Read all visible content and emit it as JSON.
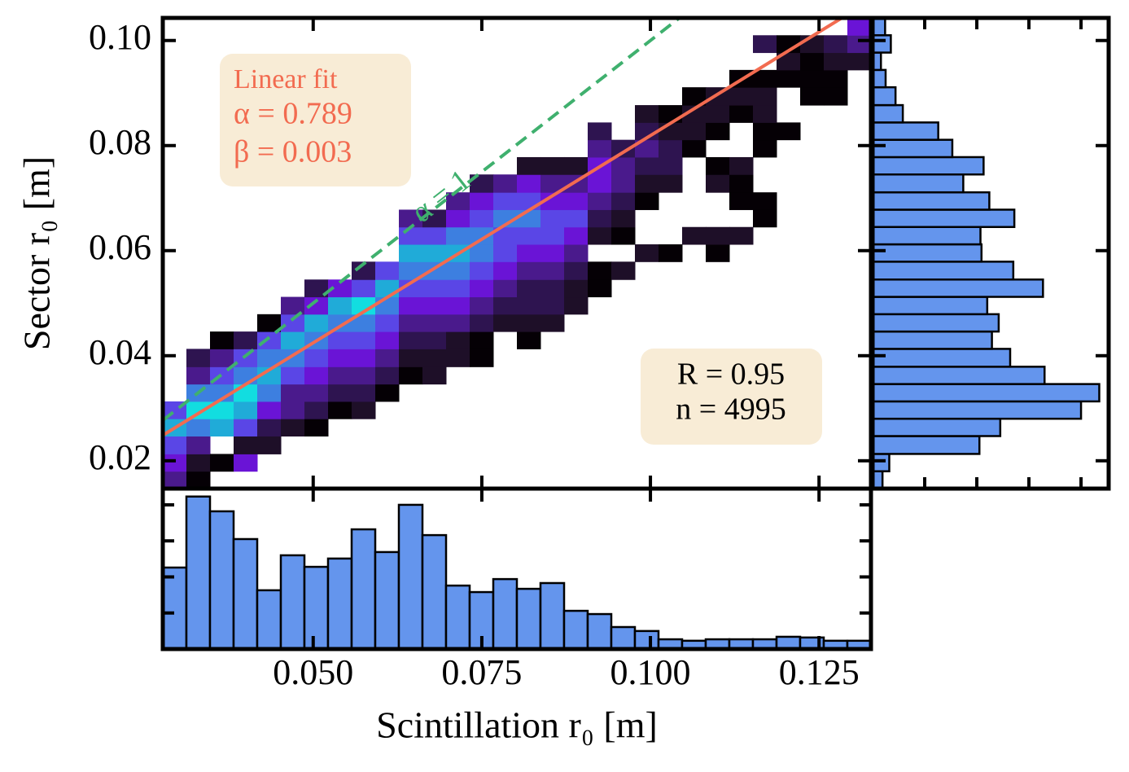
{
  "chart_data": [
    {
      "type": "hist2d",
      "xlabel": "Scintillation r₀ [m]",
      "ylabel": "Sector r₀ [m]",
      "xlim": [
        0.0277,
        0.1327
      ],
      "ylim": [
        0.0147,
        0.1043
      ],
      "xticks": [
        {
          "value": 0.05,
          "label": "0.050"
        },
        0.075,
        {
          "value": 0.1,
          "label": "0.100"
        },
        0.125
      ],
      "yticks": [
        0.02,
        0.04,
        0.06,
        0.08,
        {
          "value": 0.1,
          "label": "0.10"
        }
      ],
      "xbins": [
        0.0277,
        0.0312,
        0.0347,
        0.0382,
        0.0417,
        0.0452,
        0.0487,
        0.0522,
        0.0557,
        0.0592,
        0.0627,
        0.0662,
        0.0697,
        0.0732,
        0.0767,
        0.0802,
        0.0837,
        0.0872,
        0.0907,
        0.0942,
        0.0977,
        0.1012,
        0.1047,
        0.1082,
        0.1117,
        0.1152,
        0.1187,
        0.1222,
        0.1257,
        0.1292,
        0.1327
      ],
      "ybins": [
        0.0147,
        0.018,
        0.0213,
        0.0247,
        0.028,
        0.0313,
        0.0346,
        0.0379,
        0.0413,
        0.0446,
        0.0479,
        0.0512,
        0.0545,
        0.0579,
        0.0612,
        0.0645,
        0.0678,
        0.0711,
        0.0745,
        0.0778,
        0.0811,
        0.0844,
        0.0877,
        0.0911,
        0.0944,
        0.0977,
        0.101,
        0.1043
      ],
      "colormap": [
        "#050005",
        "#1e0f28",
        "#2e1450",
        "#4a1a8c",
        "#6a14d6",
        "#5a46e6",
        "#3d7fe0",
        "#20abd8",
        "#12dde0"
      ],
      "counts": [
        [
          4,
          5,
          6,
          8,
          6,
          0,
          0,
          0,
          0,
          0,
          0,
          0,
          0,
          0,
          0,
          0,
          0,
          0,
          0,
          0,
          0,
          0,
          0,
          0,
          0,
          0,
          0
        ],
        [
          1,
          2,
          4,
          7,
          9,
          7,
          4,
          3,
          0,
          0,
          0,
          0,
          0,
          0,
          0,
          0,
          0,
          0,
          0,
          0,
          0,
          0,
          0,
          0,
          0,
          0,
          0
        ],
        [
          0,
          1,
          0,
          8,
          9,
          7,
          6,
          4,
          1,
          0,
          0,
          0,
          0,
          0,
          0,
          0,
          0,
          0,
          0,
          0,
          0,
          0,
          0,
          0,
          0,
          0,
          0
        ],
        [
          0,
          5,
          2,
          6,
          8,
          9,
          7,
          6,
          3,
          0,
          0,
          0,
          0,
          0,
          0,
          0,
          0,
          0,
          0,
          0,
          0,
          0,
          0,
          0,
          0,
          0,
          0
        ],
        [
          0,
          0,
          2,
          3,
          5,
          7,
          8,
          7,
          6,
          1,
          0,
          0,
          0,
          0,
          0,
          0,
          0,
          0,
          0,
          0,
          0,
          0,
          0,
          0,
          0,
          0,
          0
        ],
        [
          0,
          0,
          0,
          2,
          4,
          4,
          6,
          7,
          8,
          6,
          4,
          0,
          0,
          0,
          0,
          0,
          0,
          0,
          0,
          0,
          0,
          0,
          0,
          0,
          0,
          0,
          0
        ],
        [
          0,
          0,
          0,
          1,
          3,
          4,
          5,
          6,
          7,
          8,
          5,
          3,
          0,
          0,
          0,
          0,
          0,
          0,
          0,
          0,
          0,
          0,
          0,
          0,
          0,
          0,
          0
        ],
        [
          0,
          0,
          0,
          0,
          1,
          3,
          4,
          5,
          6,
          7,
          8,
          5,
          0,
          0,
          0,
          0,
          0,
          0,
          0,
          0,
          0,
          0,
          0,
          0,
          0,
          0,
          0
        ],
        [
          0,
          0,
          0,
          0,
          2,
          3,
          4,
          5,
          6,
          7,
          9,
          6,
          3,
          0,
          0,
          0,
          0,
          0,
          0,
          0,
          0,
          0,
          0,
          0,
          0,
          0,
          0
        ],
        [
          0,
          0,
          0,
          0,
          0,
          1,
          3,
          4,
          5,
          6,
          7,
          8,
          6,
          0,
          0,
          0,
          0,
          0,
          0,
          0,
          0,
          0,
          0,
          0,
          0,
          0,
          0
        ],
        [
          0,
          0,
          0,
          0,
          0,
          0,
          1,
          2,
          3,
          4,
          5,
          6,
          7,
          8,
          6,
          4,
          0,
          0,
          0,
          0,
          0,
          0,
          0,
          0,
          0,
          0,
          0
        ],
        [
          0,
          0,
          0,
          0,
          0,
          0,
          2,
          2,
          3,
          4,
          5,
          6,
          7,
          8,
          6,
          3,
          0,
          0,
          0,
          0,
          0,
          0,
          0,
          0,
          0,
          0,
          0
        ],
        [
          0,
          0,
          0,
          0,
          0,
          0,
          0,
          2,
          2,
          4,
          5,
          6,
          7,
          8,
          7,
          5,
          4,
          0,
          0,
          0,
          0,
          0,
          0,
          0,
          0,
          0,
          0
        ],
        [
          0,
          0,
          0,
          0,
          0,
          0,
          0,
          1,
          1,
          3,
          4,
          5,
          6,
          7,
          7,
          6,
          5,
          3,
          0,
          0,
          0,
          0,
          0,
          0,
          0,
          0,
          0
        ],
        [
          0,
          0,
          0,
          0,
          0,
          0,
          0,
          0,
          0,
          2,
          3,
          4,
          5,
          6,
          6,
          7,
          6,
          4,
          0,
          0,
          0,
          0,
          0,
          0,
          0,
          0,
          0
        ],
        [
          0,
          0,
          0,
          0,
          0,
          0,
          0,
          0,
          1,
          2,
          3,
          3,
          4,
          5,
          6,
          7,
          6,
          5,
          2,
          0,
          0,
          0,
          0,
          0,
          0,
          0,
          0
        ],
        [
          0,
          0,
          0,
          0,
          0,
          0,
          0,
          0,
          0,
          2,
          3,
          3,
          4,
          5,
          6,
          6,
          5,
          4,
          2,
          0,
          0,
          0,
          0,
          0,
          0,
          0,
          0
        ],
        [
          0,
          0,
          0,
          0,
          0,
          0,
          0,
          0,
          0,
          0,
          2,
          2,
          3,
          4,
          5,
          6,
          5,
          4,
          2,
          0,
          0,
          0,
          0,
          0,
          0,
          0,
          0
        ],
        [
          0,
          0,
          0,
          0,
          0,
          0,
          0,
          0,
          0,
          0,
          0,
          1,
          1,
          0,
          2,
          3,
          4,
          5,
          5,
          4,
          3,
          0,
          0,
          0,
          0,
          0,
          0
        ],
        [
          0,
          0,
          0,
          0,
          0,
          0,
          0,
          0,
          0,
          0,
          0,
          0,
          2,
          0,
          1,
          2,
          3,
          4,
          4,
          3,
          0,
          0,
          0,
          0,
          0,
          0,
          0
        ],
        [
          0,
          0,
          0,
          0,
          0,
          0,
          0,
          0,
          0,
          0,
          0,
          0,
          0,
          2,
          0,
          0,
          1,
          2,
          3,
          4,
          3,
          2,
          0,
          0,
          0,
          0,
          0
        ],
        [
          0,
          0,
          0,
          0,
          0,
          0,
          0,
          0,
          0,
          0,
          0,
          0,
          0,
          1,
          0,
          0,
          0,
          2,
          3,
          3,
          2,
          1,
          0,
          0,
          0,
          0,
          0
        ],
        [
          0,
          0,
          0,
          0,
          0,
          0,
          0,
          0,
          0,
          0,
          0,
          0,
          0,
          0,
          2,
          0,
          0,
          0,
          0,
          1,
          2,
          2,
          1,
          0,
          0,
          0,
          0
        ],
        [
          0,
          0,
          0,
          0,
          0,
          0,
          0,
          0,
          0,
          0,
          0,
          0,
          0,
          1,
          2,
          0,
          0,
          2,
          1,
          0,
          1,
          2,
          2,
          0,
          0,
          0,
          0
        ],
        [
          0,
          0,
          0,
          0,
          0,
          0,
          0,
          0,
          0,
          0,
          0,
          0,
          0,
          0,
          2,
          0,
          1,
          1,
          2,
          0,
          0,
          1,
          2,
          1,
          0,
          0,
          0
        ],
        [
          0,
          0,
          0,
          0,
          0,
          0,
          0,
          0,
          0,
          0,
          0,
          0,
          0,
          0,
          0,
          1,
          1,
          0,
          0,
          1,
          1,
          2,
          2,
          1,
          0,
          3,
          0
        ],
        [
          0,
          0,
          0,
          0,
          0,
          0,
          0,
          0,
          0,
          0,
          0,
          0,
          0,
          0,
          0,
          0,
          0,
          0,
          0,
          0,
          1,
          0,
          0,
          1,
          2,
          1,
          0
        ],
        [
          0,
          0,
          0,
          0,
          0,
          0,
          0,
          0,
          0,
          0,
          0,
          0,
          0,
          0,
          0,
          0,
          0,
          0,
          0,
          0,
          0,
          0,
          1,
          1,
          1,
          2,
          0
        ],
        [
          0,
          0,
          0,
          0,
          0,
          0,
          0,
          0,
          0,
          0,
          0,
          0,
          0,
          0,
          0,
          0,
          0,
          0,
          0,
          0,
          0,
          0,
          1,
          1,
          2,
          3,
          0
        ],
        [
          0,
          0,
          0,
          0,
          0,
          0,
          0,
          0,
          0,
          0,
          0,
          0,
          0,
          0,
          0,
          0,
          0,
          0,
          0,
          0,
          0,
          0,
          0,
          0,
          2,
          4,
          5
        ]
      ],
      "fit": {
        "label": "Linear fit",
        "alpha": 0.789,
        "beta": 0.003,
        "alpha_label": "α = 0.789",
        "beta_label": "β = 0.003",
        "color": "#f26b50"
      },
      "identity": {
        "slope": 1,
        "label": "α = 1",
        "color": "#3fb06e"
      },
      "stats": [
        "R = 0.95",
        "n = 4995"
      ]
    },
    {
      "type": "histogram",
      "orientation": "vertical",
      "color": "#6495ed",
      "bins": [
        0.0277,
        0.0312,
        0.0347,
        0.0382,
        0.0417,
        0.0452,
        0.0487,
        0.0522,
        0.0557,
        0.0592,
        0.0627,
        0.0662,
        0.0697,
        0.0732,
        0.0767,
        0.0802,
        0.0837,
        0.0872,
        0.0907,
        0.0942,
        0.0977,
        0.1012,
        0.1047,
        0.1082,
        0.1117,
        0.1152,
        0.1187,
        0.1222,
        0.1257,
        0.1292,
        0.1327
      ],
      "values": [
        226,
        423,
        382,
        305,
        163,
        260,
        228,
        251,
        332,
        269,
        400,
        316,
        176,
        158,
        194,
        167,
        183,
        106,
        97,
        61,
        50,
        27,
        23,
        27,
        27,
        27,
        34,
        32,
        23,
        23
      ],
      "xlim": [
        0.0277,
        0.1327
      ],
      "ylim": [
        0,
        445
      ],
      "yticks": [
        100,
        200,
        300,
        400
      ]
    },
    {
      "type": "histogram",
      "orientation": "horizontal",
      "color": "#6495ed",
      "bins": [
        0.0147,
        0.018,
        0.0213,
        0.0247,
        0.028,
        0.0313,
        0.0346,
        0.0379,
        0.0413,
        0.0446,
        0.0479,
        0.0512,
        0.0545,
        0.0579,
        0.0612,
        0.0645,
        0.0678,
        0.0711,
        0.0745,
        0.0778,
        0.0811,
        0.0844,
        0.0877,
        0.0911,
        0.0944,
        0.0977,
        0.101,
        0.1043
      ],
      "values": [
        19,
        32,
        205,
        245,
        400,
        435,
        330,
        264,
        229,
        242,
        220,
        327,
        270,
        209,
        207,
        272,
        224,
        174,
        213,
        153,
        126,
        58,
        44,
        25,
        16,
        35,
        24
      ],
      "ylim": [
        0.0147,
        0.1043
      ],
      "xlim": [
        0,
        453
      ],
      "xticks": [
        100,
        200,
        300,
        400
      ]
    }
  ]
}
